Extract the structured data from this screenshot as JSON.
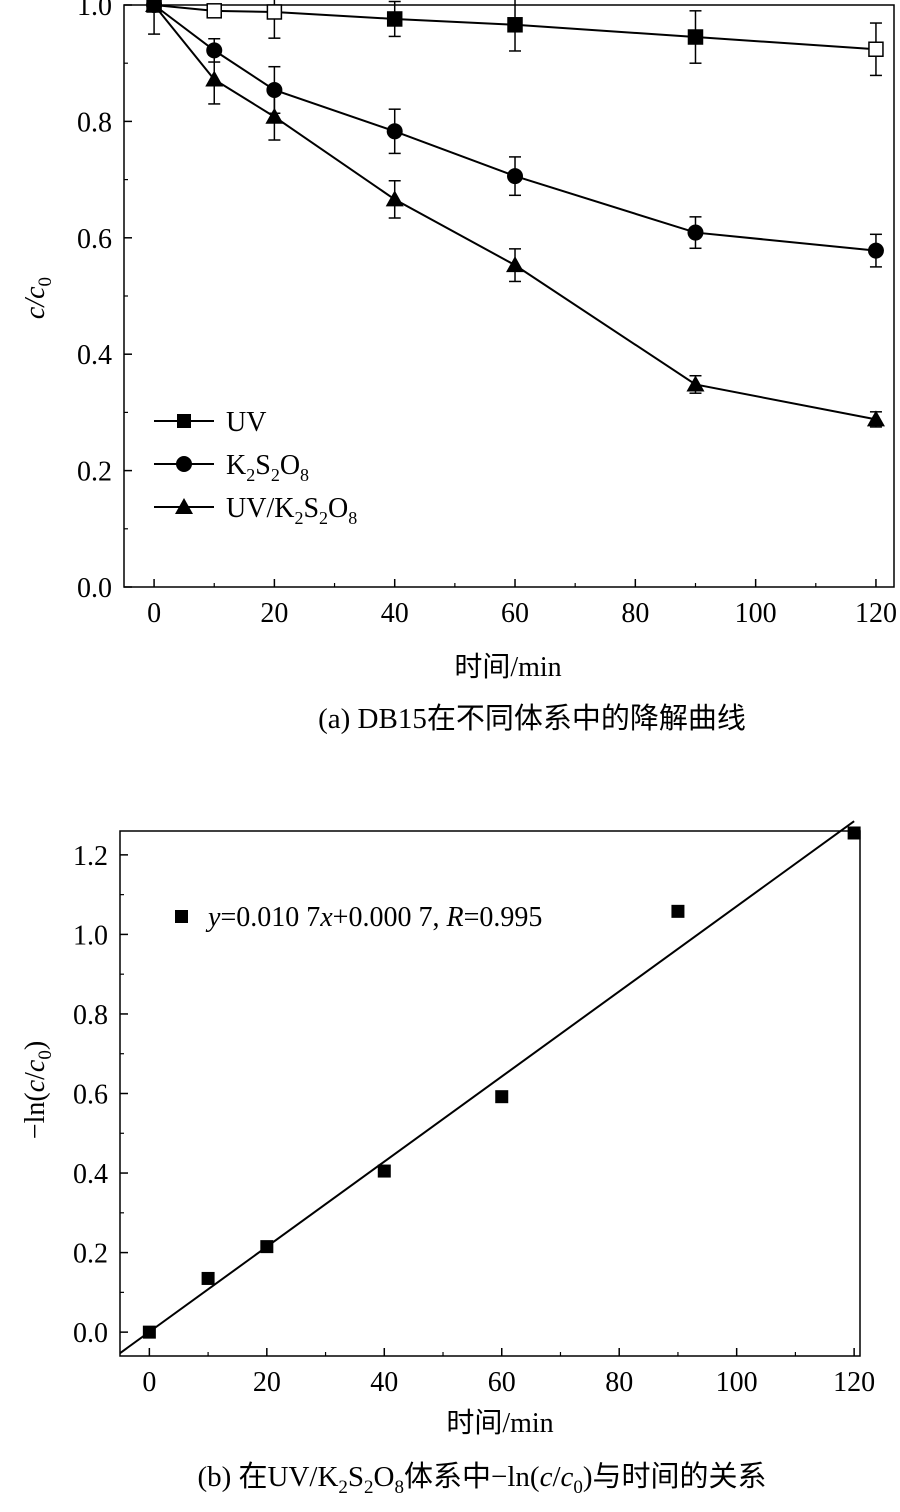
{
  "chart_data": [
    {
      "panel": "a",
      "type": "line",
      "caption": "(a) DB15在不同体系中的降解曲线",
      "xlabel": "时间/min",
      "ylabel": "c/c0",
      "xlim": [
        -5,
        123
      ],
      "ylim": [
        0,
        1.0
      ],
      "x_ticks": [
        0,
        20,
        40,
        60,
        80,
        100,
        120
      ],
      "y_ticks": [
        0.0,
        0.2,
        0.4,
        0.6,
        0.8,
        1.0
      ],
      "x_tick_labels": [
        "0",
        "20",
        "40",
        "60",
        "80",
        "100",
        "120"
      ],
      "y_tick_labels": [
        "0.0",
        "0.2",
        "0.4",
        "0.6",
        "0.8",
        "1.0"
      ],
      "legend_position": "lower-left",
      "x": [
        0,
        10,
        20,
        40,
        60,
        90,
        120
      ],
      "series": [
        {
          "name": "UV",
          "marker": "square",
          "values": [
            1.0,
            0.99,
            0.988,
            0.976,
            0.966,
            0.945,
            0.924
          ],
          "errors": [
            0.05,
            0.0,
            0.045,
            0.03,
            0.045,
            0.045,
            0.045
          ]
        },
        {
          "name": "K2S2O8",
          "marker": "circle",
          "values": [
            1.0,
            0.922,
            0.854,
            0.783,
            0.706,
            0.609,
            0.578
          ],
          "errors": [
            0.0,
            0.02,
            0.04,
            0.038,
            0.033,
            0.027,
            0.028
          ]
        },
        {
          "name": "UV/K2S2O8",
          "marker": "triangle",
          "values": [
            1.0,
            0.872,
            0.808,
            0.666,
            0.553,
            0.348,
            0.288
          ],
          "errors": [
            0.0,
            0.042,
            0.04,
            0.032,
            0.028,
            0.015,
            0.013
          ]
        }
      ]
    },
    {
      "panel": "b",
      "type": "scatter",
      "caption": "(b) 在UV/K2S2O8体系中−ln(c/c0)与时间的关系",
      "xlabel": "时间/min",
      "ylabel": "−ln(c/c0)",
      "xlim": [
        -5,
        121
      ],
      "ylim": [
        -0.06,
        1.26
      ],
      "x_ticks": [
        0,
        20,
        40,
        60,
        80,
        100,
        120
      ],
      "y_ticks": [
        0.0,
        0.2,
        0.4,
        0.6,
        0.8,
        1.0,
        1.2
      ],
      "x_tick_labels": [
        "0",
        "20",
        "40",
        "60",
        "80",
        "100",
        "120"
      ],
      "y_tick_labels": [
        "0.0",
        "0.2",
        "0.4",
        "0.6",
        "0.8",
        "1.0",
        "1.2"
      ],
      "legend_position": "top-left",
      "legend_label": "y=0.010 7x+0.000 7, R=0.995",
      "x": [
        0,
        10,
        20,
        40,
        60,
        90,
        120
      ],
      "values": [
        0.0,
        0.135,
        0.215,
        0.405,
        0.592,
        1.058,
        1.255
      ],
      "fit": {
        "slope": 0.0107,
        "intercept": 0.0007,
        "R": 0.995
      }
    }
  ]
}
